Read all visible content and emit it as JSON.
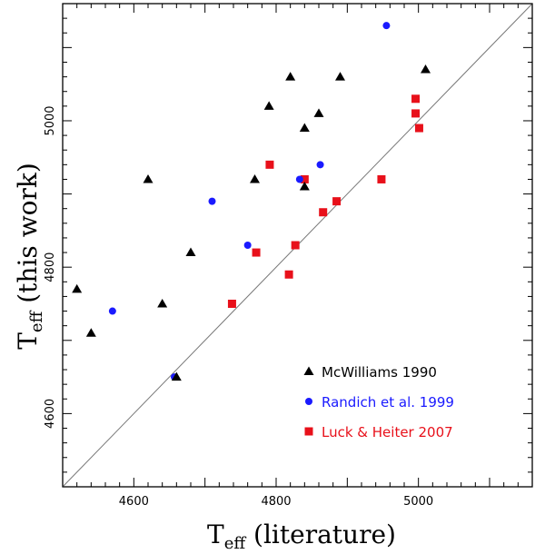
{
  "chart_data": {
    "type": "scatter",
    "xlim": [
      4500,
      5160
    ],
    "ylim": [
      4500,
      5160
    ],
    "xticks": [
      4600,
      4800,
      5000
    ],
    "yticks": [
      4600,
      4800,
      5000
    ],
    "xlabel": {
      "main": "T",
      "sub": "eff",
      "rest": " (literature)"
    },
    "ylabel": {
      "main": "T",
      "sub": "eff",
      "rest": " (this work)"
    },
    "reference_line": "one-to-one",
    "legend_position": "bottom-right",
    "series": [
      {
        "name": "McWilliams 1990",
        "marker": "triangle",
        "color": "#000000",
        "points": [
          [
            4520,
            4770
          ],
          [
            4540,
            4710
          ],
          [
            4620,
            4920
          ],
          [
            4640,
            4750
          ],
          [
            4660,
            4650
          ],
          [
            4680,
            4820
          ],
          [
            4770,
            4920
          ],
          [
            4790,
            5020
          ],
          [
            4820,
            5060
          ],
          [
            4840,
            4990
          ],
          [
            4840,
            4910
          ],
          [
            4860,
            5010
          ],
          [
            4890,
            5060
          ],
          [
            5010,
            5070
          ]
        ]
      },
      {
        "name": "Randich et al. 1999",
        "marker": "circle",
        "color": "#1a1aff",
        "points": [
          [
            4570,
            4740
          ],
          [
            4657,
            4650
          ],
          [
            4710,
            4890
          ],
          [
            4760,
            4830
          ],
          [
            4833,
            4920
          ],
          [
            4862,
            4940
          ],
          [
            4955,
            5130
          ]
        ]
      },
      {
        "name": "Luck & Heiter 2007",
        "marker": "square",
        "color": "#e8101a",
        "points": [
          [
            4738,
            4750
          ],
          [
            4772,
            4820
          ],
          [
            4791,
            4940
          ],
          [
            4818,
            4790
          ],
          [
            4827,
            4830
          ],
          [
            4840,
            4920
          ],
          [
            4866,
            4875
          ],
          [
            4885,
            4890
          ],
          [
            4948,
            4920
          ],
          [
            4996,
            5030
          ],
          [
            4996,
            5010
          ],
          [
            5001,
            4990
          ]
        ]
      }
    ]
  }
}
